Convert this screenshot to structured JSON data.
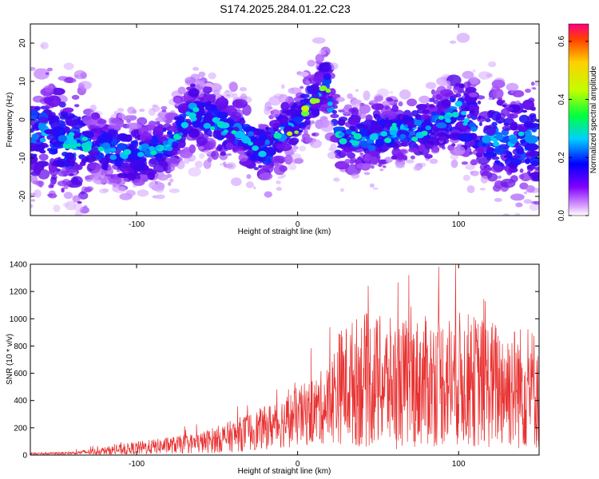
{
  "title": "S174.2025.284.01.22.C23",
  "chart_data": [
    {
      "type": "heatmap",
      "xlabel": "Height of straight line (km)",
      "ylabel": "Frequency (Hz)",
      "xlim": [
        -166,
        150
      ],
      "ylim": [
        -25,
        25
      ],
      "x_ticks": [
        -100,
        0,
        100
      ],
      "x_tick_labels": [
        "-100",
        "0",
        "100"
      ],
      "y_ticks": [
        -20,
        -10,
        0,
        10,
        20
      ],
      "y_tick_labels": [
        "-20",
        "-10",
        "0",
        "10",
        "20"
      ],
      "ridge": {
        "description_points_x": [
          -166,
          -140,
          -120,
          -100,
          -80,
          -65,
          -40,
          -20,
          0,
          10,
          17,
          25,
          40,
          60,
          80,
          100,
          120,
          150
        ],
        "description_points_y": [
          -3,
          -6,
          -8,
          -9,
          -7,
          2,
          -3,
          -8,
          0,
          5,
          10,
          -4,
          -5,
          -3,
          -2,
          2,
          -5,
          -6
        ]
      },
      "colorbar": {
        "label": "Normalized spectral amplitude",
        "range": [
          0.0,
          0.66
        ],
        "ticks": [
          0.0,
          0.2,
          0.4,
          0.6
        ],
        "tick_labels": [
          "0.0",
          "0.2",
          "0.4",
          "0.6"
        ]
      }
    },
    {
      "type": "line",
      "xlabel": "Height of straight line (km)",
      "ylabel": "SNR (10 * v/v)",
      "xlim": [
        -166,
        150
      ],
      "ylim": [
        0,
        1400
      ],
      "x_ticks": [
        -100,
        0,
        100
      ],
      "x_tick_labels": [
        "-100",
        "0",
        "100"
      ],
      "y_ticks": [
        0,
        200,
        400,
        600,
        800,
        1000,
        1200,
        1400
      ],
      "y_tick_labels": [
        "0",
        "200",
        "400",
        "600",
        "800",
        "1000",
        "1200",
        "1400"
      ],
      "series_color": "#e83030",
      "envelope_x": [
        -166,
        -140,
        -120,
        -100,
        -80,
        -60,
        -40,
        -20,
        0,
        10,
        20,
        25,
        40,
        60,
        80,
        100,
        120,
        150
      ],
      "envelope_median": [
        10,
        15,
        30,
        50,
        70,
        90,
        140,
        200,
        280,
        320,
        380,
        500,
        550,
        520,
        540,
        560,
        520,
        480
      ],
      "envelope_spread": [
        8,
        10,
        30,
        50,
        60,
        80,
        120,
        160,
        220,
        250,
        300,
        420,
        500,
        480,
        480,
        500,
        480,
        450
      ],
      "peak_max": 1400
    }
  ],
  "colors": {
    "heatmap_low": "#e8d0ff",
    "heatmap_mid": "#5a00e0",
    "heatmap_high": "#00e0ff",
    "line": "#e83030"
  }
}
